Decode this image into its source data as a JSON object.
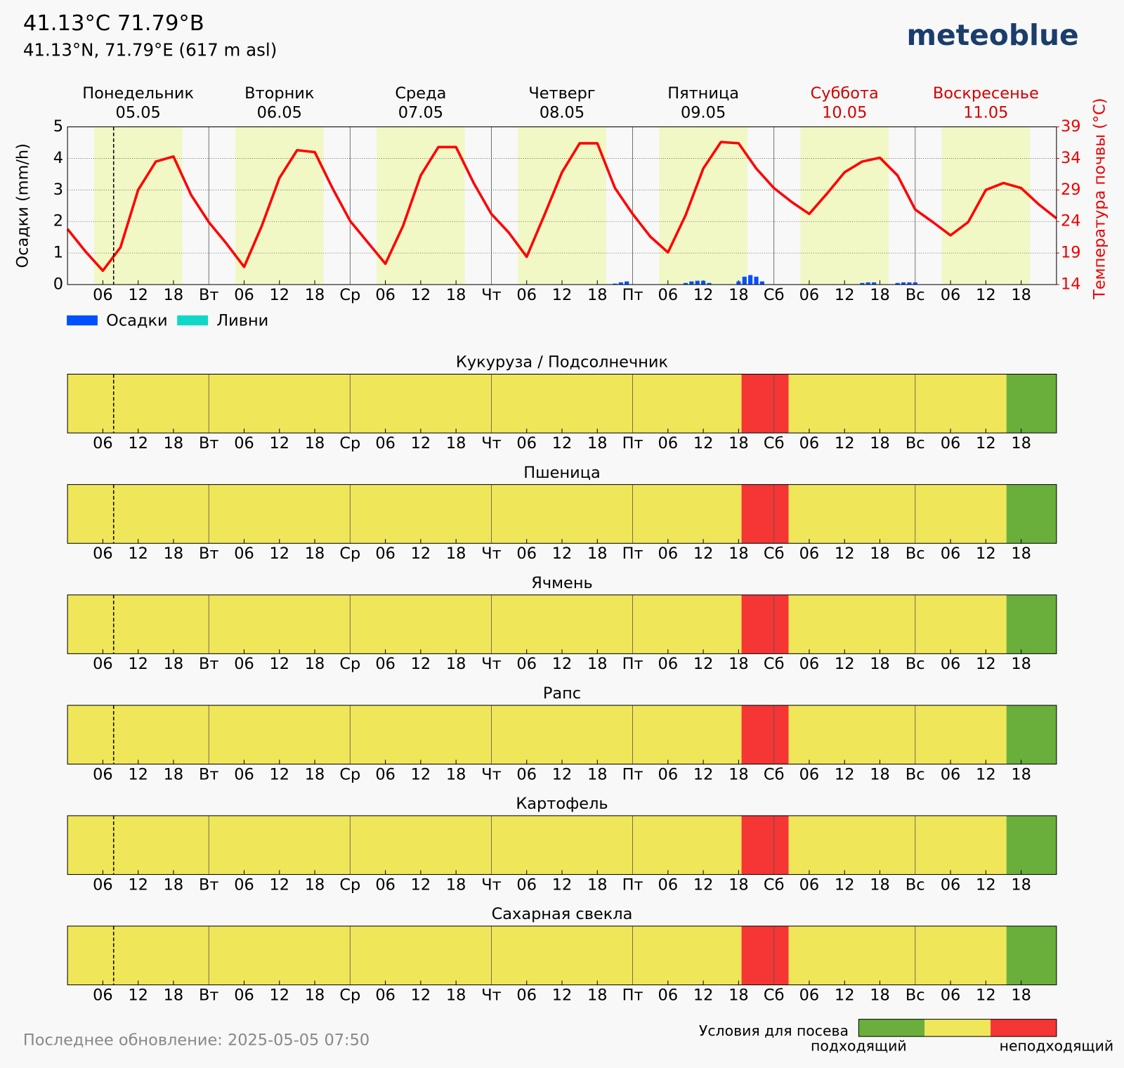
{
  "header": {
    "title": "41.13°C 71.79°В",
    "subtitle": "41.13°N, 71.79°E (617 m asl)",
    "logo": "meteoblue",
    "footer": "Последнее обновление: 2025-05-05 07:50"
  },
  "days": [
    {
      "name": "Понедельник",
      "date": "05.05",
      "weekend": false
    },
    {
      "name": "Вторник",
      "date": "06.05",
      "weekend": false
    },
    {
      "name": "Среда",
      "date": "07.05",
      "weekend": false
    },
    {
      "name": "Четверг",
      "date": "08.05",
      "weekend": false
    },
    {
      "name": "Пятница",
      "date": "09.05",
      "weekend": false
    },
    {
      "name": "Суббота",
      "date": "10.05",
      "weekend": true
    },
    {
      "name": "Воскресенье",
      "date": "11.05",
      "weekend": true
    }
  ],
  "chart_data": {
    "type": "line",
    "ylabel": "Осадки (mm/h)",
    "y2label": "Температура почвы (°C)",
    "xlim": [
      0,
      168
    ],
    "xticks": [
      {
        "value": 6,
        "label": "06"
      },
      {
        "value": 12,
        "label": "12"
      },
      {
        "value": 18,
        "label": "18"
      },
      {
        "value": 24,
        "label": "Вт"
      },
      {
        "value": 30,
        "label": "06"
      },
      {
        "value": 36,
        "label": "12"
      },
      {
        "value": 42,
        "label": "18"
      },
      {
        "value": 48,
        "label": "Ср"
      },
      {
        "value": 54,
        "label": "06"
      },
      {
        "value": 60,
        "label": "12"
      },
      {
        "value": 66,
        "label": "18"
      },
      {
        "value": 72,
        "label": "Чт"
      },
      {
        "value": 78,
        "label": "06"
      },
      {
        "value": 84,
        "label": "12"
      },
      {
        "value": 90,
        "label": "18"
      },
      {
        "value": 96,
        "label": "Пт"
      },
      {
        "value": 102,
        "label": "06"
      },
      {
        "value": 108,
        "label": "12"
      },
      {
        "value": 114,
        "label": "18"
      },
      {
        "value": 120,
        "label": "Сб"
      },
      {
        "value": 126,
        "label": "06"
      },
      {
        "value": 132,
        "label": "12"
      },
      {
        "value": 138,
        "label": "18"
      },
      {
        "value": 144,
        "label": "Вс"
      },
      {
        "value": 150,
        "label": "06"
      },
      {
        "value": 156,
        "label": "12"
      },
      {
        "value": 162,
        "label": "18"
      }
    ],
    "ylim": [
      0,
      5
    ],
    "yticks": [
      0,
      1,
      2,
      3,
      4,
      5
    ],
    "y2lim": [
      14,
      39
    ],
    "y2ticks": [
      14,
      19,
      24,
      29,
      34,
      39
    ],
    "grid": true,
    "now": 7.83,
    "daylight": [
      [
        4.5,
        19.5
      ],
      [
        28.5,
        43.5
      ],
      [
        52.5,
        67.5
      ],
      [
        76.5,
        91.5
      ],
      [
        100.5,
        115.5
      ],
      [
        124.5,
        139.5
      ],
      [
        148.5,
        163.5
      ]
    ],
    "x": [
      0,
      3,
      6,
      9,
      12,
      15,
      18,
      21,
      24,
      27,
      30,
      33,
      36,
      39,
      42,
      45,
      48,
      51,
      54,
      57,
      60,
      63,
      66,
      69,
      72,
      75,
      78,
      81,
      84,
      87,
      90,
      93,
      96,
      99,
      102,
      105,
      108,
      111,
      114,
      117,
      120,
      123,
      126,
      129,
      132,
      135,
      138,
      141,
      144,
      147,
      150,
      153,
      156,
      159,
      162,
      165,
      168
    ],
    "series": [
      {
        "name": "Температура почвы",
        "color": "#ff0000",
        "axis": "y2",
        "values": [
          22.8,
          19.3,
          16.2,
          19.9,
          29,
          33.5,
          34.3,
          28.2,
          23.9,
          20.5,
          16.8,
          23.3,
          30.9,
          35.3,
          35,
          29.3,
          24.1,
          20.7,
          17.3,
          23.3,
          31.3,
          35.8,
          35.8,
          30.1,
          25.2,
          22.2,
          18.4,
          25,
          31.8,
          36.4,
          36.4,
          29.3,
          25.2,
          21.6,
          19.1,
          25,
          32.4,
          36.6,
          36.4,
          32.4,
          29.3,
          27.1,
          25.2,
          28.4,
          31.8,
          33.5,
          34.1,
          31.3,
          25.9,
          23.9,
          21.8,
          23.9,
          29,
          30.1,
          29.3,
          26.7,
          24.5
        ]
      }
    ],
    "precipitation": {
      "x": [
        93,
        94,
        95,
        105,
        106,
        107,
        108,
        109,
        114,
        115,
        116,
        117,
        118,
        135,
        136,
        137,
        141,
        142,
        143,
        144
      ],
      "series": [
        {
          "name": "Осадки",
          "color": "#0050ff",
          "values": [
            0.03,
            0.07,
            0.1,
            0.05,
            0.1,
            0.12,
            0.12,
            0.05,
            0.1,
            0.25,
            0.3,
            0.25,
            0.1,
            0.05,
            0.07,
            0.07,
            0.05,
            0.07,
            0.07,
            0.07
          ]
        },
        {
          "name": "Ливни",
          "color": "#10d8c8",
          "values": [
            0,
            0,
            0,
            0,
            0,
            0,
            0,
            0,
            0,
            0,
            0,
            0,
            0,
            0,
            0,
            0,
            0,
            0,
            0,
            0
          ]
        }
      ]
    }
  },
  "suitability": {
    "legend_title": "Условия для посева",
    "levels": [
      {
        "label": "подходящий",
        "color": "#6aaf3c"
      },
      {
        "label": null,
        "color": "#f0e65a"
      },
      {
        "label": "неподходящий",
        "color": "#f63535"
      }
    ],
    "crops": [
      {
        "name": "Кукуруза / Подсолнечник",
        "periods": [
          {
            "start": 0,
            "end": 114.5,
            "level": 1
          },
          {
            "start": 114.5,
            "end": 122.5,
            "level": 2
          },
          {
            "start": 122.5,
            "end": 159.5,
            "level": 1
          },
          {
            "start": 159.5,
            "end": 168,
            "level": 0
          }
        ]
      },
      {
        "name": "Пшеница",
        "periods": [
          {
            "start": 0,
            "end": 114.5,
            "level": 1
          },
          {
            "start": 114.5,
            "end": 122.5,
            "level": 2
          },
          {
            "start": 122.5,
            "end": 159.5,
            "level": 1
          },
          {
            "start": 159.5,
            "end": 168,
            "level": 0
          }
        ]
      },
      {
        "name": "Ячмень",
        "periods": [
          {
            "start": 0,
            "end": 114.5,
            "level": 1
          },
          {
            "start": 114.5,
            "end": 122.5,
            "level": 2
          },
          {
            "start": 122.5,
            "end": 159.5,
            "level": 1
          },
          {
            "start": 159.5,
            "end": 168,
            "level": 0
          }
        ]
      },
      {
        "name": "Рапс",
        "periods": [
          {
            "start": 0,
            "end": 114.5,
            "level": 1
          },
          {
            "start": 114.5,
            "end": 122.5,
            "level": 2
          },
          {
            "start": 122.5,
            "end": 159.5,
            "level": 1
          },
          {
            "start": 159.5,
            "end": 168,
            "level": 0
          }
        ]
      },
      {
        "name": "Картофель",
        "periods": [
          {
            "start": 0,
            "end": 114.5,
            "level": 1
          },
          {
            "start": 114.5,
            "end": 122.5,
            "level": 2
          },
          {
            "start": 122.5,
            "end": 159.5,
            "level": 1
          },
          {
            "start": 159.5,
            "end": 168,
            "level": 0
          }
        ]
      },
      {
        "name": "Сахарная свекла",
        "periods": [
          {
            "start": 0,
            "end": 114.5,
            "level": 1
          },
          {
            "start": 114.5,
            "end": 122.5,
            "level": 2
          },
          {
            "start": 122.5,
            "end": 159.5,
            "level": 1
          },
          {
            "start": 159.5,
            "end": 168,
            "level": 0
          }
        ]
      }
    ]
  }
}
